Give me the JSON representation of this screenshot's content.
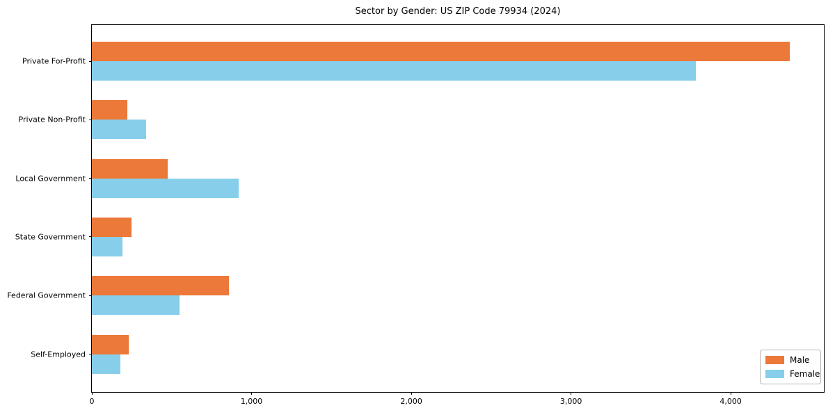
{
  "figure": {
    "background": "#ffffff",
    "spine_color": "#000000"
  },
  "chart_data": {
    "type": "bar",
    "orientation": "horizontal",
    "title": "Sector by Gender: US ZIP Code 79934 (2024)",
    "categories": [
      "Private For-Profit",
      "Private Non-Profit",
      "Local Government",
      "State Government",
      "Federal Government",
      "Self-Employed"
    ],
    "series": [
      {
        "name": "Male",
        "color": "#ec7839",
        "values": [
          4370,
          220,
          475,
          250,
          860,
          230
        ]
      },
      {
        "name": "Female",
        "color": "#87ceeb",
        "values": [
          3780,
          340,
          920,
          190,
          550,
          180
        ]
      }
    ],
    "xlabel": "",
    "ylabel": "",
    "xlim": [
      0,
      4583
    ],
    "x_ticks": [
      0,
      1000,
      2000,
      3000,
      4000
    ],
    "x_tick_labels": [
      "0",
      "1,000",
      "2,000",
      "3,000",
      "4,000"
    ],
    "grid": false,
    "legend": {
      "position": "lower right",
      "entries": [
        "Male",
        "Female"
      ]
    }
  }
}
